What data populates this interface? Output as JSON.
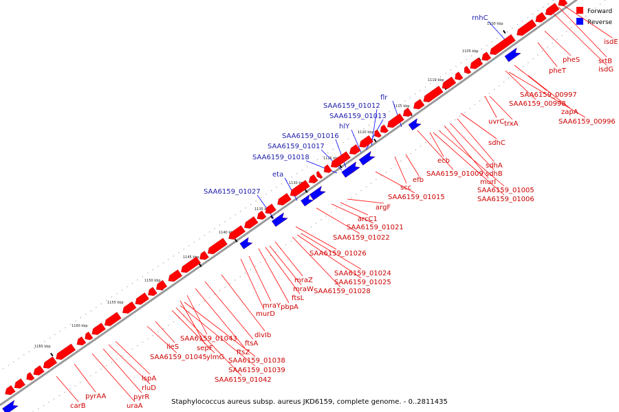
{
  "caption": "Staphylococcus aureus subsp. aureus JKD6159, complete genome. - 0..2811435",
  "legend": [
    {
      "label": "Forward",
      "color": "#ff0000"
    },
    {
      "label": "Reverse",
      "color": "#0000ff"
    }
  ],
  "colors": {
    "forward": "#ff0000",
    "reverse": "#0000ff",
    "forward_label": "#cc0000",
    "reverse_label": "#1a1aaa",
    "backbone": "#888888"
  },
  "kbp_ticks": [
    "1100 kbp",
    "1105 kbp",
    "1110 kbp",
    "1115 kbp",
    "1120 kbp",
    "1125 kbp",
    "1130 kbp",
    "1135 kbp",
    "1140 kbp",
    "1145 kbp",
    "1150 kbp",
    "1155 kbp",
    "1160 kbp",
    "1165 kbp"
  ],
  "forward_genes": [
    "isdE",
    "srtB",
    "isdG",
    "pheS",
    "pheT",
    "SAA6159_00997",
    "SAA6159_00998",
    "zapA",
    "SAA6159_00996",
    "trxA",
    "uvrC",
    "sdhC",
    "ecb",
    "sdhA",
    "sdhB",
    "murI",
    "SAA6159_01009",
    "SAA6159_01005",
    "SAA6159_01006",
    "efb",
    "scc",
    "SAA6159_01015",
    "argF",
    "arcC1",
    "SAA6159_01021",
    "SAA6159_01022",
    "SAA6159_01026",
    "SAA6159_01024",
    "SAA6159_01025",
    "SAA6159_01028",
    "mraZ",
    "mraW",
    "ftsL",
    "pbpA",
    "mraY",
    "murD",
    "divIb",
    "ftsA",
    "ftsZ",
    "SAA6159_01043",
    "sepF",
    "ileS",
    "SAA6159_01045",
    "ylmG",
    "SAA6159_01038",
    "SAA6159_01039",
    "SAA6159_01042",
    "lspA",
    "rluD",
    "pyrR",
    "pyrAA",
    "uraA",
    "carB"
  ],
  "reverse_genes": [
    "rnhC",
    "flr",
    "SAA6159_01012",
    "SAA6159_01013",
    "hlY",
    "SAA6159_01016",
    "SAA6159_01017",
    "SAA6159_01018",
    "eta",
    "SAA6159_01027"
  ]
}
